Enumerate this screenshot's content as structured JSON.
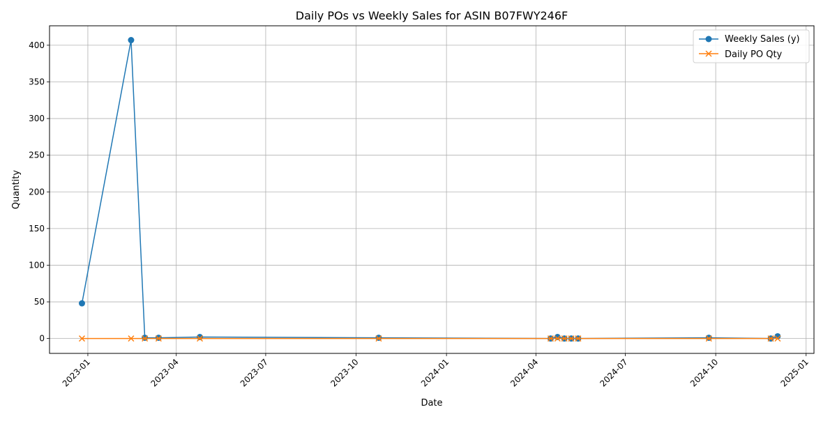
{
  "chart_data": {
    "type": "line",
    "title": "Daily POs vs Weekly Sales for ASIN B07FWY246F",
    "xlabel": "Date",
    "ylabel": "Quantity",
    "x_axis": "date",
    "xlim": [
      "2022-11-23",
      "2025-01-09"
    ],
    "ylim": [
      -20.3,
      426.5
    ],
    "x_ticks": [
      "2023-01",
      "2023-04",
      "2023-07",
      "2023-10",
      "2024-01",
      "2024-04",
      "2024-07",
      "2024-10",
      "2025-01"
    ],
    "y_ticks": [
      0,
      50,
      100,
      150,
      200,
      250,
      300,
      350,
      400
    ],
    "grid": true,
    "legend_position": "top-right",
    "series": [
      {
        "name": "Weekly Sales (y)",
        "color": "#1f77b4",
        "marker": "circle",
        "points": [
          {
            "x": "2022-12-26",
            "y": 48
          },
          {
            "x": "2023-02-14",
            "y": 407
          },
          {
            "x": "2023-02-28",
            "y": 1
          },
          {
            "x": "2023-03-14",
            "y": 1
          },
          {
            "x": "2023-04-25",
            "y": 2
          },
          {
            "x": "2023-10-24",
            "y": 1
          },
          {
            "x": "2024-04-16",
            "y": 0
          },
          {
            "x": "2024-04-23",
            "y": 2
          },
          {
            "x": "2024-04-30",
            "y": 0
          },
          {
            "x": "2024-05-07",
            "y": 0
          },
          {
            "x": "2024-05-14",
            "y": 0
          },
          {
            "x": "2024-09-24",
            "y": 1
          },
          {
            "x": "2024-11-26",
            "y": 0
          },
          {
            "x": "2024-12-03",
            "y": 3
          }
        ]
      },
      {
        "name": "Daily PO Qty",
        "color": "#ff7f0e",
        "marker": "x",
        "points": [
          {
            "x": "2022-12-26",
            "y": 0
          },
          {
            "x": "2023-02-14",
            "y": 0
          },
          {
            "x": "2023-02-28",
            "y": 0
          },
          {
            "x": "2023-03-14",
            "y": 0
          },
          {
            "x": "2023-04-25",
            "y": 0
          },
          {
            "x": "2023-10-24",
            "y": 0
          },
          {
            "x": "2024-04-16",
            "y": 0
          },
          {
            "x": "2024-04-23",
            "y": 0
          },
          {
            "x": "2024-04-30",
            "y": 0
          },
          {
            "x": "2024-05-07",
            "y": 0
          },
          {
            "x": "2024-05-14",
            "y": 0
          },
          {
            "x": "2024-09-24",
            "y": 0
          },
          {
            "x": "2024-11-26",
            "y": 0
          },
          {
            "x": "2024-12-03",
            "y": 0
          }
        ]
      }
    ]
  }
}
